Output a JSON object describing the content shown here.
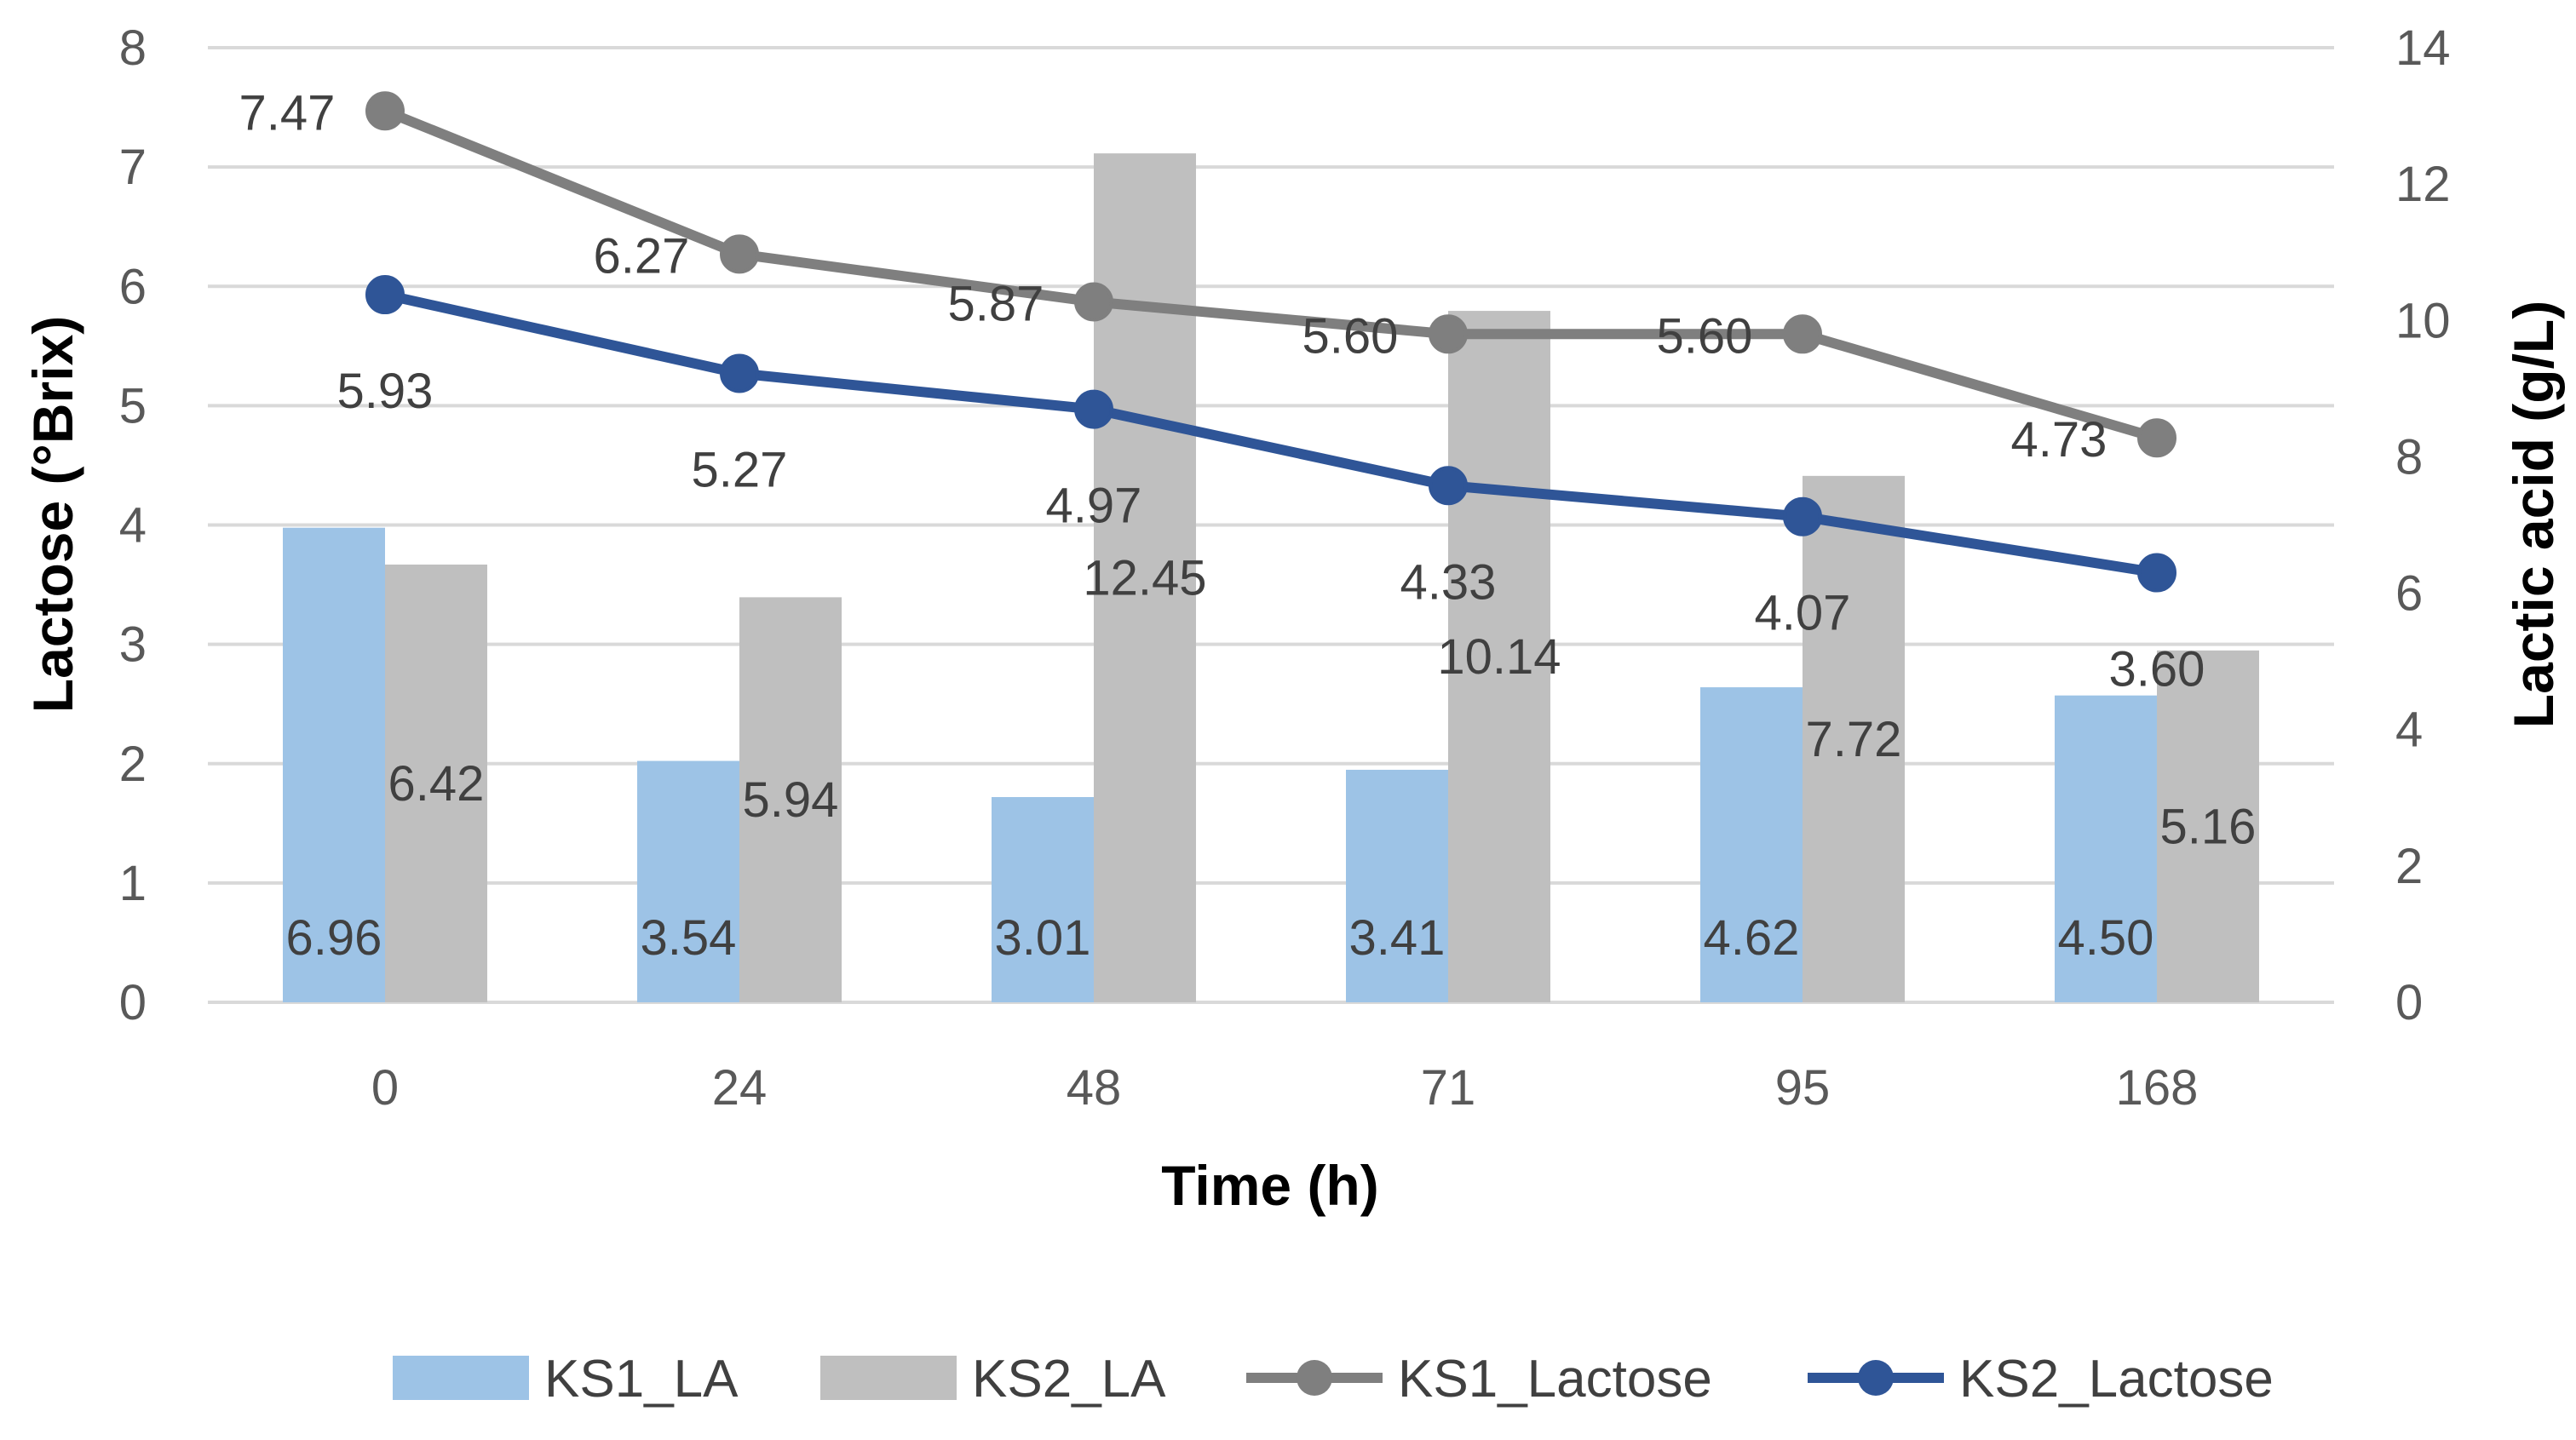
{
  "chart_data": {
    "type": "bar",
    "title": "",
    "xlabel": "Time (h)",
    "ylabel": "Lactose (°Brix)",
    "y2label": "Lactic acid (g/L)",
    "categories": [
      "0",
      "24",
      "48",
      "71",
      "95",
      "168"
    ],
    "ylim": [
      0,
      8
    ],
    "y_ticks": [
      "0",
      "1",
      "2",
      "3",
      "4",
      "5",
      "6",
      "7",
      "8"
    ],
    "y2lim": [
      0,
      14
    ],
    "y2_ticks": [
      "0",
      "2",
      "4",
      "6",
      "8",
      "10",
      "12",
      "14"
    ],
    "grid": true,
    "legend_position": "bottom",
    "series": [
      {
        "name": "KS1_LA",
        "kind": "bar",
        "axis": "right",
        "color": "#9DC3E6",
        "values": [
          6.96,
          3.54,
          3.01,
          3.41,
          4.62,
          4.5
        ],
        "labels": [
          "6.96",
          "3.54",
          "3.01",
          "3.41",
          "4.62",
          "4.50"
        ]
      },
      {
        "name": "KS2_LA",
        "kind": "bar",
        "axis": "right",
        "color": "#BFBFBF",
        "values": [
          6.42,
          5.94,
          12.45,
          10.14,
          7.72,
          5.16
        ],
        "labels": [
          "6.42",
          "5.94",
          "12.45",
          "10.14",
          "7.72",
          "5.16"
        ]
      },
      {
        "name": "KS1_Lactose",
        "kind": "line",
        "axis": "left",
        "color": "#7F7F7F",
        "values": [
          7.47,
          6.27,
          5.87,
          5.6,
          5.6,
          4.73
        ],
        "labels": [
          "7.47",
          "6.27",
          "5.87",
          "5.60",
          "5.60",
          "4.73"
        ]
      },
      {
        "name": "KS2_Lactose",
        "kind": "line",
        "axis": "left",
        "color": "#2F5597",
        "values": [
          5.93,
          5.27,
          4.97,
          4.33,
          4.07,
          3.6
        ],
        "labels": [
          "5.93",
          "5.27",
          "4.97",
          "4.33",
          "4.07",
          "3.60"
        ]
      }
    ]
  }
}
